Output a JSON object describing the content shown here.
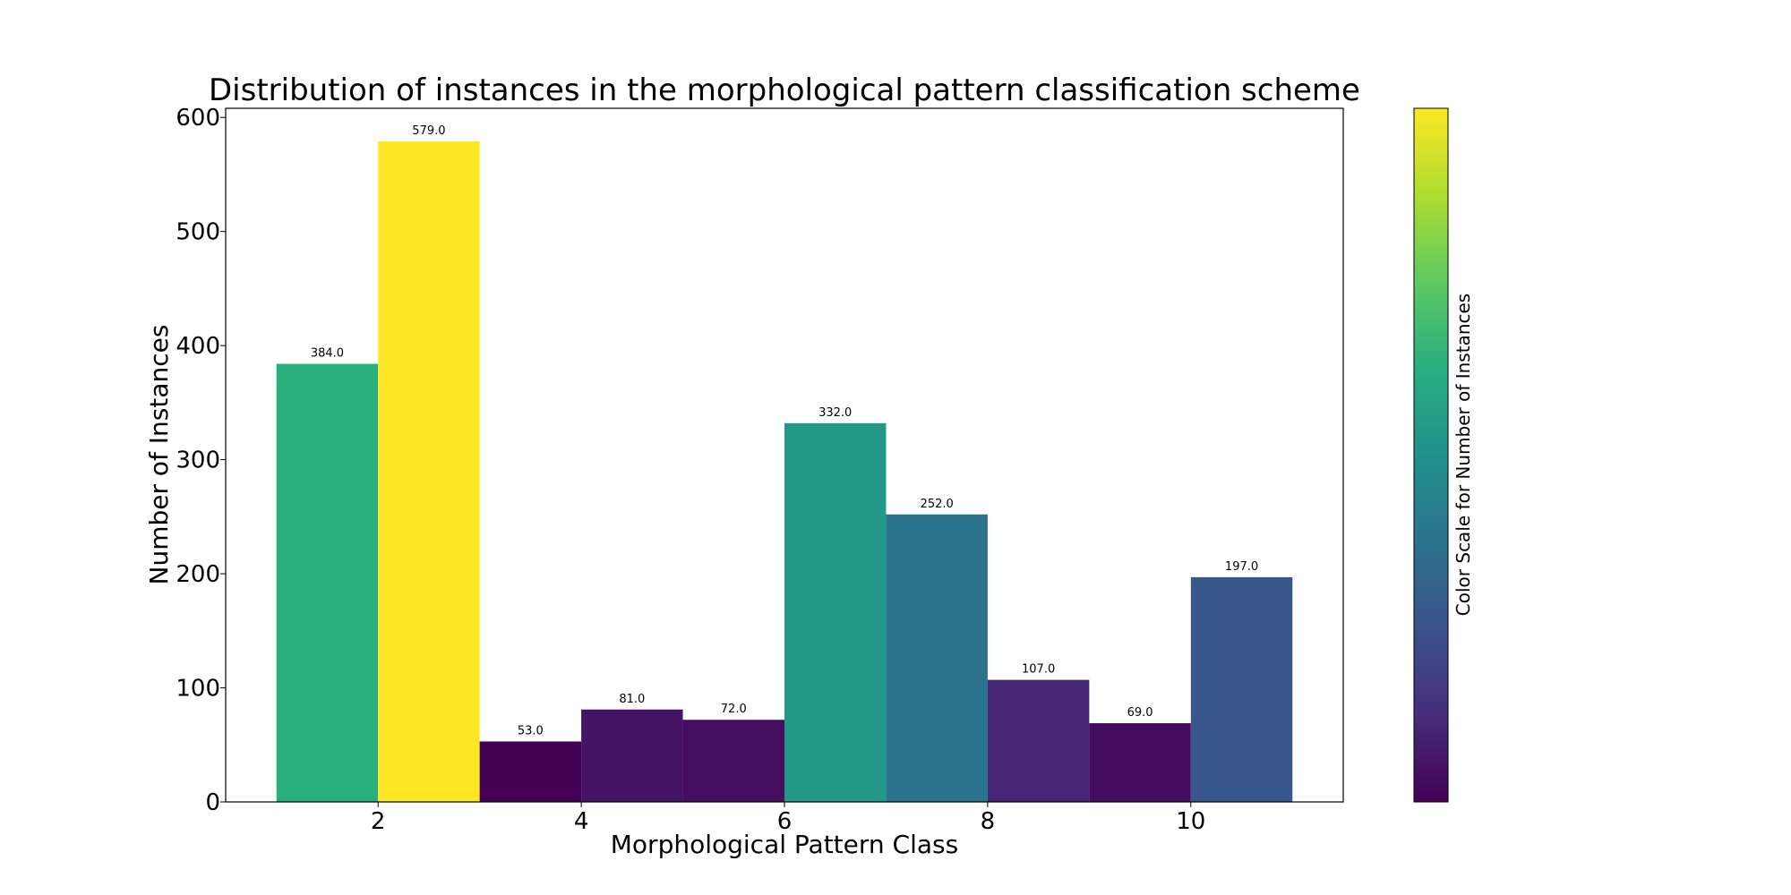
{
  "chart_data": {
    "type": "bar",
    "title": "Distribution of instances in the morphological pattern classification scheme",
    "xlabel": "Morphological Pattern Class",
    "ylabel": "Number of Instances",
    "x": [
      1.5,
      2.5,
      3.5,
      4.5,
      5.5,
      6.5,
      7.5,
      8.5,
      9.5,
      10.5
    ],
    "bin_edges": [
      1.0,
      2.0,
      3.0,
      4.0,
      5.0,
      6.0,
      7.0,
      8.0,
      9.0,
      10.0,
      11.0
    ],
    "values": [
      384,
      579,
      53,
      81,
      72,
      332,
      252,
      107,
      69,
      197
    ],
    "data_labels": [
      "384.0",
      "579.0",
      "53.0",
      "81.0",
      "72.0",
      "332.0",
      "252.0",
      "107.0",
      "69.0",
      "197.0"
    ],
    "xlim": [
      0.5,
      11.5
    ],
    "ylim": [
      0,
      608
    ],
    "xticks": [
      2,
      4,
      6,
      8,
      10
    ],
    "yticks": [
      0,
      100,
      200,
      300,
      400,
      500,
      600
    ],
    "colormap": "viridis",
    "color_range": [
      53,
      579
    ],
    "colorbar_label": "Color Scale for Number of Instances",
    "grid": false,
    "legend": "none"
  }
}
